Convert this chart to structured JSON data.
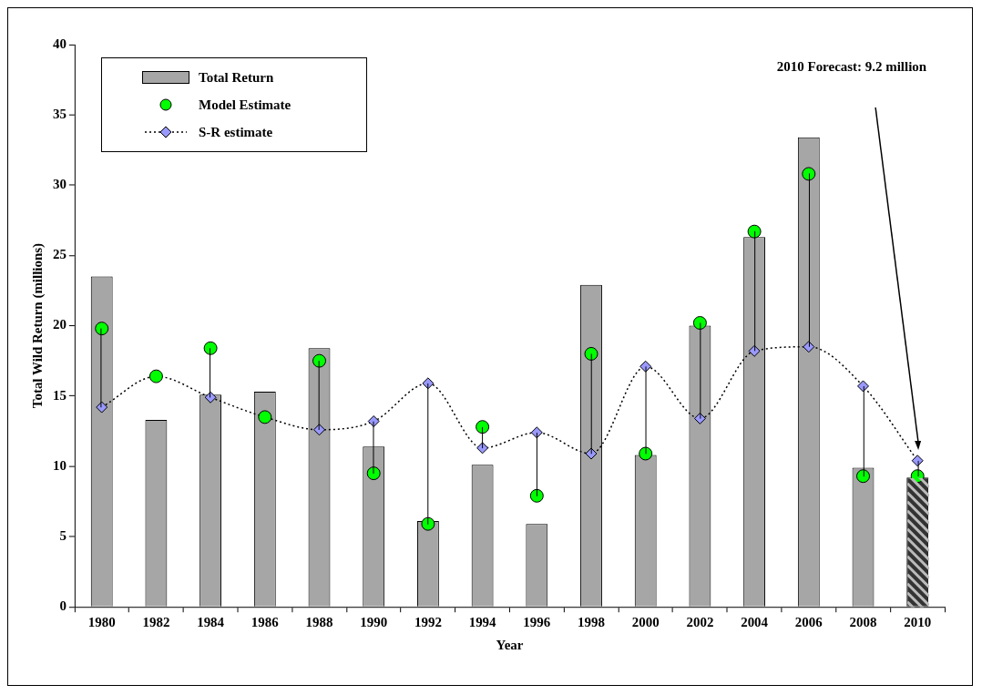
{
  "chart_data": {
    "type": "bar",
    "xlabel": "Year",
    "ylabel": "Total Wild Return (millions)",
    "categories": [
      "1980",
      "1982",
      "1984",
      "1986",
      "1988",
      "1990",
      "1992",
      "1994",
      "1996",
      "1998",
      "2000",
      "2002",
      "2004",
      "2006",
      "2008",
      "2010"
    ],
    "series": [
      {
        "name": "Total Return",
        "colors": [
          "#a6a6a6",
          "#a6a6a6",
          "#a6a6a6",
          "#a6a6a6",
          "#a6a6a6",
          "#a6a6a6",
          "#a6a6a6",
          "#a6a6a6",
          "#a6a6a6",
          "#a6a6a6",
          "#a6a6a6",
          "#a6a6a6",
          "#a6a6a6",
          "#a6a6a6",
          "#a6a6a6",
          "#333333"
        ],
        "values": [
          23.5,
          13.3,
          15.1,
          15.3,
          18.4,
          11.4,
          6.1,
          10.1,
          5.9,
          22.9,
          10.8,
          20.0,
          26.3,
          33.4,
          9.9,
          9.2
        ]
      },
      {
        "name": "Model Estimate",
        "type": "scatter",
        "color": "#00ff00",
        "marker": "circle",
        "values": [
          19.8,
          16.4,
          18.4,
          13.5,
          17.5,
          9.5,
          5.9,
          12.8,
          7.9,
          18.0,
          10.9,
          20.2,
          26.7,
          30.8,
          9.3,
          9.3
        ]
      },
      {
        "name": "S-R estimate",
        "type": "line",
        "color": "#9999ff",
        "marker": "diamond",
        "line_style": "dotted",
        "values": [
          14.2,
          16.4,
          14.9,
          13.5,
          12.6,
          13.2,
          15.9,
          11.3,
          12.4,
          10.9,
          17.1,
          13.4,
          18.2,
          18.5,
          15.7,
          10.4
        ]
      }
    ],
    "ylim": [
      0,
      40
    ],
    "yticks": [
      0,
      5,
      10,
      15,
      20,
      25,
      30,
      35,
      40
    ],
    "grid": false,
    "legend": "top left",
    "annotations": [
      "2010 Forecast: 9.2 million"
    ]
  }
}
